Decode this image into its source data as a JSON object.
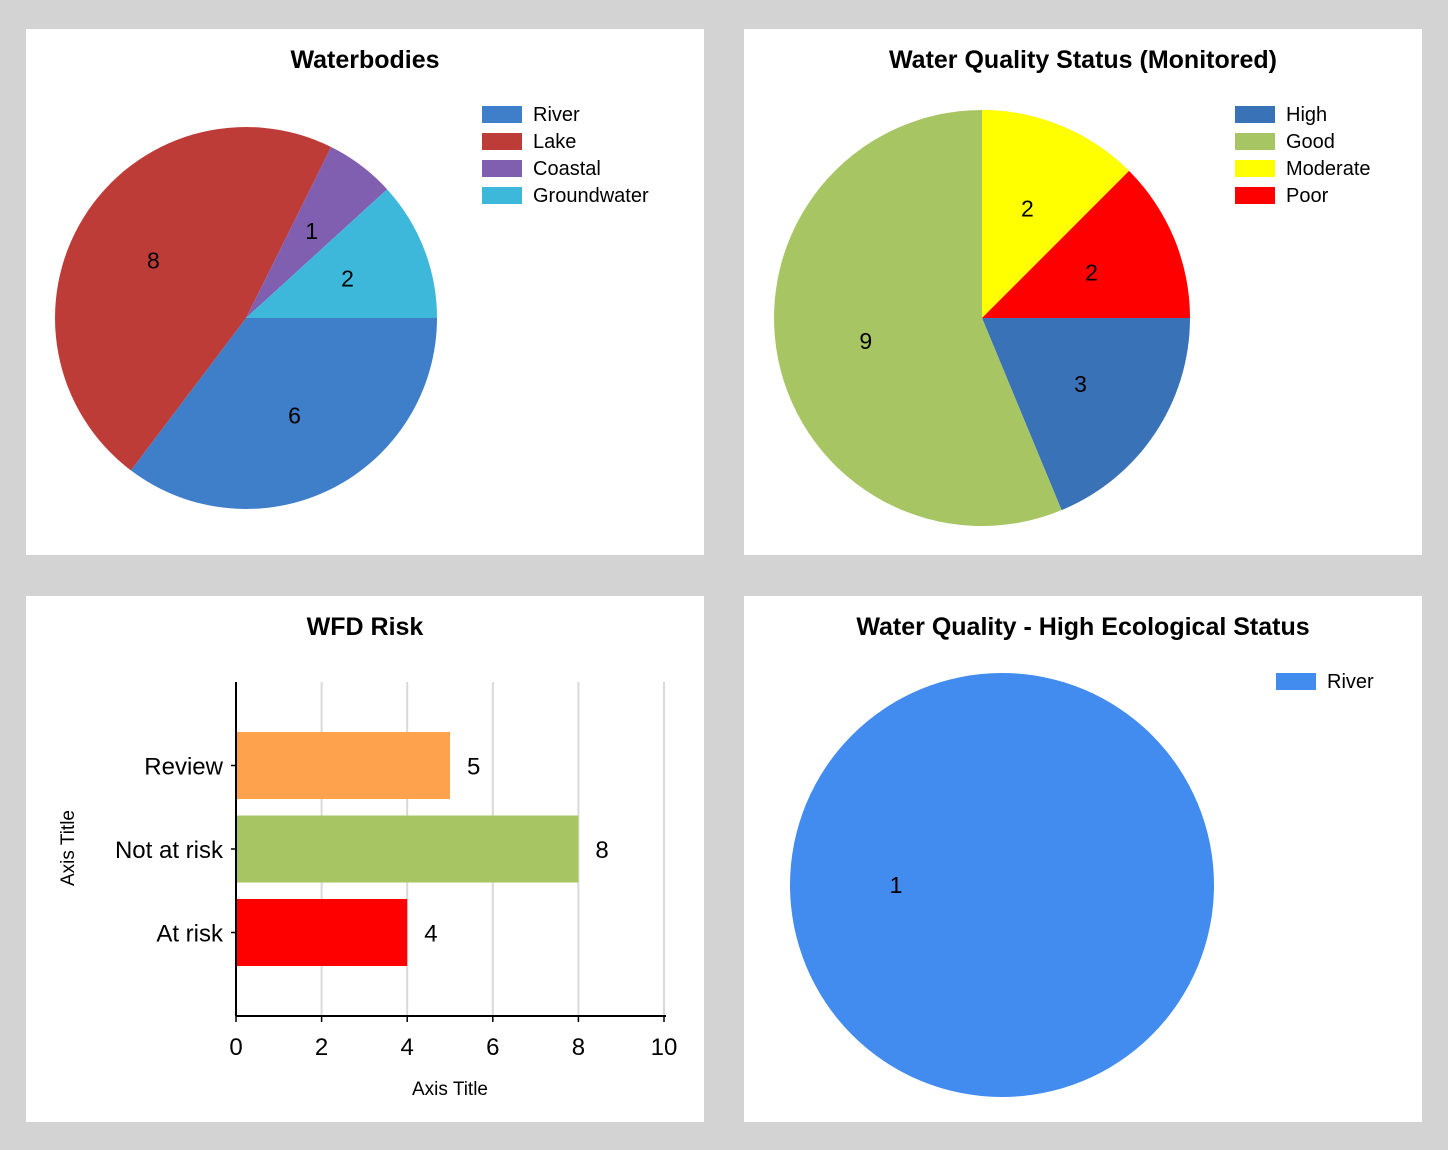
{
  "chart_data": [
    {
      "type": "pie",
      "title": "Waterbodies",
      "legend_position": "top-right",
      "categories": [
        "River",
        "Lake",
        "Coastal",
        "Groundwater"
      ],
      "values": [
        6,
        8,
        1,
        2
      ],
      "colors": [
        "#3f7ec9",
        "#be3c38",
        "#805eb0",
        "#3db8db"
      ]
    },
    {
      "type": "pie",
      "title": "Water Quality Status (Monitored)",
      "legend_position": "top-right",
      "categories": [
        "High",
        "Good",
        "Moderate",
        "Poor"
      ],
      "values": [
        3,
        9,
        2,
        2
      ],
      "colors": [
        "#3a72b8",
        "#a7c663",
        "#ffff00",
        "#ff0000"
      ]
    },
    {
      "type": "bar",
      "orientation": "horizontal",
      "title": "WFD Risk",
      "categories": [
        "Review",
        "Not at risk",
        "At risk"
      ],
      "values": [
        5,
        8,
        4
      ],
      "colors": [
        "#ffa24d",
        "#a7c663",
        "#ff0000"
      ],
      "xlabel": "Axis Title",
      "ylabel": "Axis Title",
      "xlim": [
        0,
        10
      ],
      "xticks": [
        "0",
        "2",
        "4",
        "6",
        "8",
        "10"
      ],
      "grid": "vertical",
      "data_labels": true
    },
    {
      "type": "pie",
      "title": "Water Quality - High Ecological Status",
      "legend_position": "top-right",
      "categories": [
        "River"
      ],
      "values": [
        1
      ],
      "colors": [
        "#428bef"
      ]
    }
  ]
}
